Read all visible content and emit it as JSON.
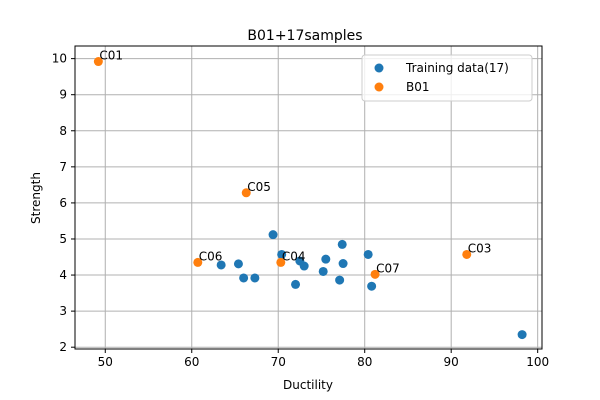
{
  "chart_data": {
    "type": "scatter",
    "title": "B01+17samples",
    "xlabel": "Ductility",
    "ylabel": "Strength",
    "xlim": [
      46.5,
      100.5
    ],
    "ylim": [
      1.95,
      10.35
    ],
    "xticks": [
      50,
      60,
      70,
      80,
      90,
      100
    ],
    "yticks": [
      2,
      3,
      4,
      5,
      6,
      7,
      8,
      9,
      10
    ],
    "grid": true,
    "legend_position": "top-right",
    "colors": {
      "training": "#1f77b4",
      "b01": "#ff7f0e"
    },
    "series": [
      {
        "name": "Training data(17)",
        "color": "#1f77b4",
        "points": [
          {
            "x": 63.4,
            "y": 4.28
          },
          {
            "x": 65.4,
            "y": 4.31
          },
          {
            "x": 66.0,
            "y": 3.92
          },
          {
            "x": 67.3,
            "y": 3.92
          },
          {
            "x": 69.4,
            "y": 5.12
          },
          {
            "x": 70.4,
            "y": 4.57
          },
          {
            "x": 72.0,
            "y": 3.74
          },
          {
            "x": 72.5,
            "y": 4.39
          },
          {
            "x": 73.0,
            "y": 4.25
          },
          {
            "x": 75.2,
            "y": 4.1
          },
          {
            "x": 75.5,
            "y": 4.44
          },
          {
            "x": 77.1,
            "y": 3.86
          },
          {
            "x": 77.4,
            "y": 4.85
          },
          {
            "x": 77.5,
            "y": 4.32
          },
          {
            "x": 80.4,
            "y": 4.57
          },
          {
            "x": 80.8,
            "y": 3.69
          },
          {
            "x": 98.2,
            "y": 2.35
          }
        ]
      },
      {
        "name": "B01",
        "color": "#ff7f0e",
        "points": [
          {
            "x": 49.2,
            "y": 9.92,
            "label": "C01"
          },
          {
            "x": 66.3,
            "y": 6.28,
            "label": "C05"
          },
          {
            "x": 60.7,
            "y": 4.35,
            "label": "C06"
          },
          {
            "x": 70.3,
            "y": 4.35,
            "label": "C04"
          },
          {
            "x": 81.2,
            "y": 4.02,
            "label": "C07"
          },
          {
            "x": 91.8,
            "y": 4.57,
            "label": "C03"
          }
        ]
      }
    ]
  }
}
